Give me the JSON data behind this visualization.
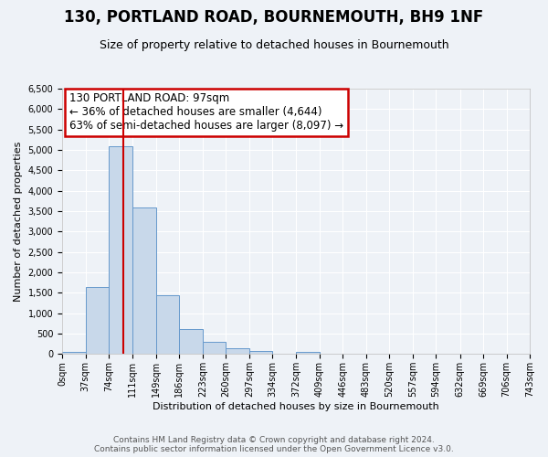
{
  "title": "130, PORTLAND ROAD, BOURNEMOUTH, BH9 1NF",
  "subtitle": "Size of property relative to detached houses in Bournemouth",
  "xlabel": "Distribution of detached houses by size in Bournemouth",
  "ylabel": "Number of detached properties",
  "bin_edges": [
    0,
    37,
    74,
    111,
    149,
    186,
    223,
    260,
    297,
    334,
    372,
    409,
    446,
    483,
    520,
    557,
    594,
    632,
    669,
    706,
    743
  ],
  "bar_heights": [
    50,
    1650,
    5080,
    3600,
    1430,
    620,
    300,
    150,
    80,
    0,
    50,
    0,
    0,
    0,
    0,
    0,
    0,
    0,
    0,
    0
  ],
  "bar_color": "#c8d8ea",
  "bar_edgecolor": "#6699cc",
  "vline_x": 97,
  "vline_color": "#cc0000",
  "ylim": [
    0,
    6500
  ],
  "yticks": [
    0,
    500,
    1000,
    1500,
    2000,
    2500,
    3000,
    3500,
    4000,
    4500,
    5000,
    5500,
    6000,
    6500
  ],
  "annotation_title": "130 PORTLAND ROAD: 97sqm",
  "annotation_line1": "← 36% of detached houses are smaller (4,644)",
  "annotation_line2": "63% of semi-detached houses are larger (8,097) →",
  "annotation_box_color": "#cc0000",
  "annotation_bg": "#ffffff",
  "footer1": "Contains HM Land Registry data © Crown copyright and database right 2024.",
  "footer2": "Contains public sector information licensed under the Open Government Licence v3.0.",
  "background_color": "#eef2f7",
  "grid_color": "#ffffff",
  "tick_labels": [
    "0sqm",
    "37sqm",
    "74sqm",
    "111sqm",
    "149sqm",
    "186sqm",
    "223sqm",
    "260sqm",
    "297sqm",
    "334sqm",
    "372sqm",
    "409sqm",
    "446sqm",
    "483sqm",
    "520sqm",
    "557sqm",
    "594sqm",
    "632sqm",
    "669sqm",
    "706sqm",
    "743sqm"
  ],
  "title_fontsize": 12,
  "subtitle_fontsize": 9,
  "axis_label_fontsize": 8,
  "tick_fontsize": 7,
  "annotation_fontsize": 8.5,
  "footer_fontsize": 6.5
}
